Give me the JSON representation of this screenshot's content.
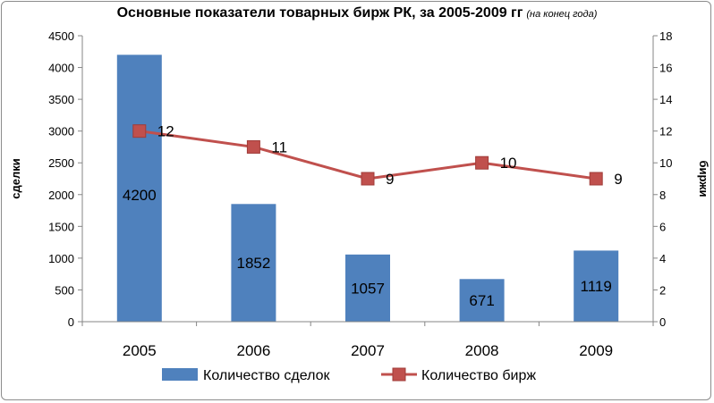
{
  "chart_data": {
    "type": "bar",
    "title": "Основные показатели товарных бирж  РК, за 2005-2009 гг",
    "subtitle": "(на конец года)",
    "categories": [
      "2005",
      "2006",
      "2007",
      "2008",
      "2009"
    ],
    "series": [
      {
        "name": "Количество сделок",
        "type": "bar",
        "axis": "left",
        "color": "#4f81bd",
        "values": [
          4200,
          1852,
          1057,
          671,
          1119
        ],
        "data_labels": [
          "4200",
          "1852",
          "1057",
          "671",
          "1119"
        ]
      },
      {
        "name": "Количество бирж",
        "type": "line",
        "axis": "right",
        "color": "#c0504d",
        "marker": "square",
        "values": [
          12,
          11,
          9,
          10,
          9
        ],
        "data_labels": [
          "12",
          "11",
          "9",
          "10",
          "9"
        ]
      }
    ],
    "y_left": {
      "label": "сделки",
      "min": 0,
      "max": 4500,
      "step": 500,
      "ticks": [
        "0",
        "500",
        "1000",
        "1500",
        "2000",
        "2500",
        "3000",
        "3500",
        "4000",
        "4500"
      ]
    },
    "y_right": {
      "label": "биржи",
      "min": 0,
      "max": 18,
      "step": 2,
      "ticks": [
        "0",
        "2",
        "4",
        "6",
        "8",
        "10",
        "12",
        "14",
        "16",
        "18"
      ]
    },
    "grid": false,
    "legend_position": "bottom"
  }
}
